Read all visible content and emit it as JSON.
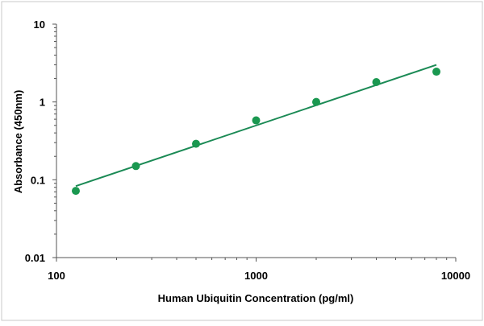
{
  "chart_data": {
    "type": "scatter",
    "xlabel": "Human Ubiquitin Concentration (pg/ml)",
    "ylabel": "Absorbance (450nm)",
    "x_scale": "log",
    "y_scale": "log",
    "xlim": [
      100,
      10000
    ],
    "ylim": [
      0.01,
      10
    ],
    "x_ticks": [
      "100",
      "1000",
      "10000"
    ],
    "y_ticks": [
      "0.01",
      "0.1",
      "1",
      "10"
    ],
    "grid": false,
    "legend": "none",
    "series": [
      {
        "points": [
          {
            "x": 125,
            "y": 0.072
          },
          {
            "x": 250,
            "y": 0.15
          },
          {
            "x": 500,
            "y": 0.29
          },
          {
            "x": 1000,
            "y": 0.58
          },
          {
            "x": 2000,
            "y": 1.0
          },
          {
            "x": 4000,
            "y": 1.8
          },
          {
            "x": 8000,
            "y": 2.45
          }
        ]
      }
    ],
    "trendline": {
      "type": "power",
      "start": {
        "x": 125,
        "y": 0.083
      },
      "end": {
        "x": 8000,
        "y": 3.0
      }
    },
    "colors": {
      "marker": "#1a9850",
      "trendline": "#1b8a55",
      "axis": "#555555",
      "frame": "#c8c8c8"
    }
  }
}
